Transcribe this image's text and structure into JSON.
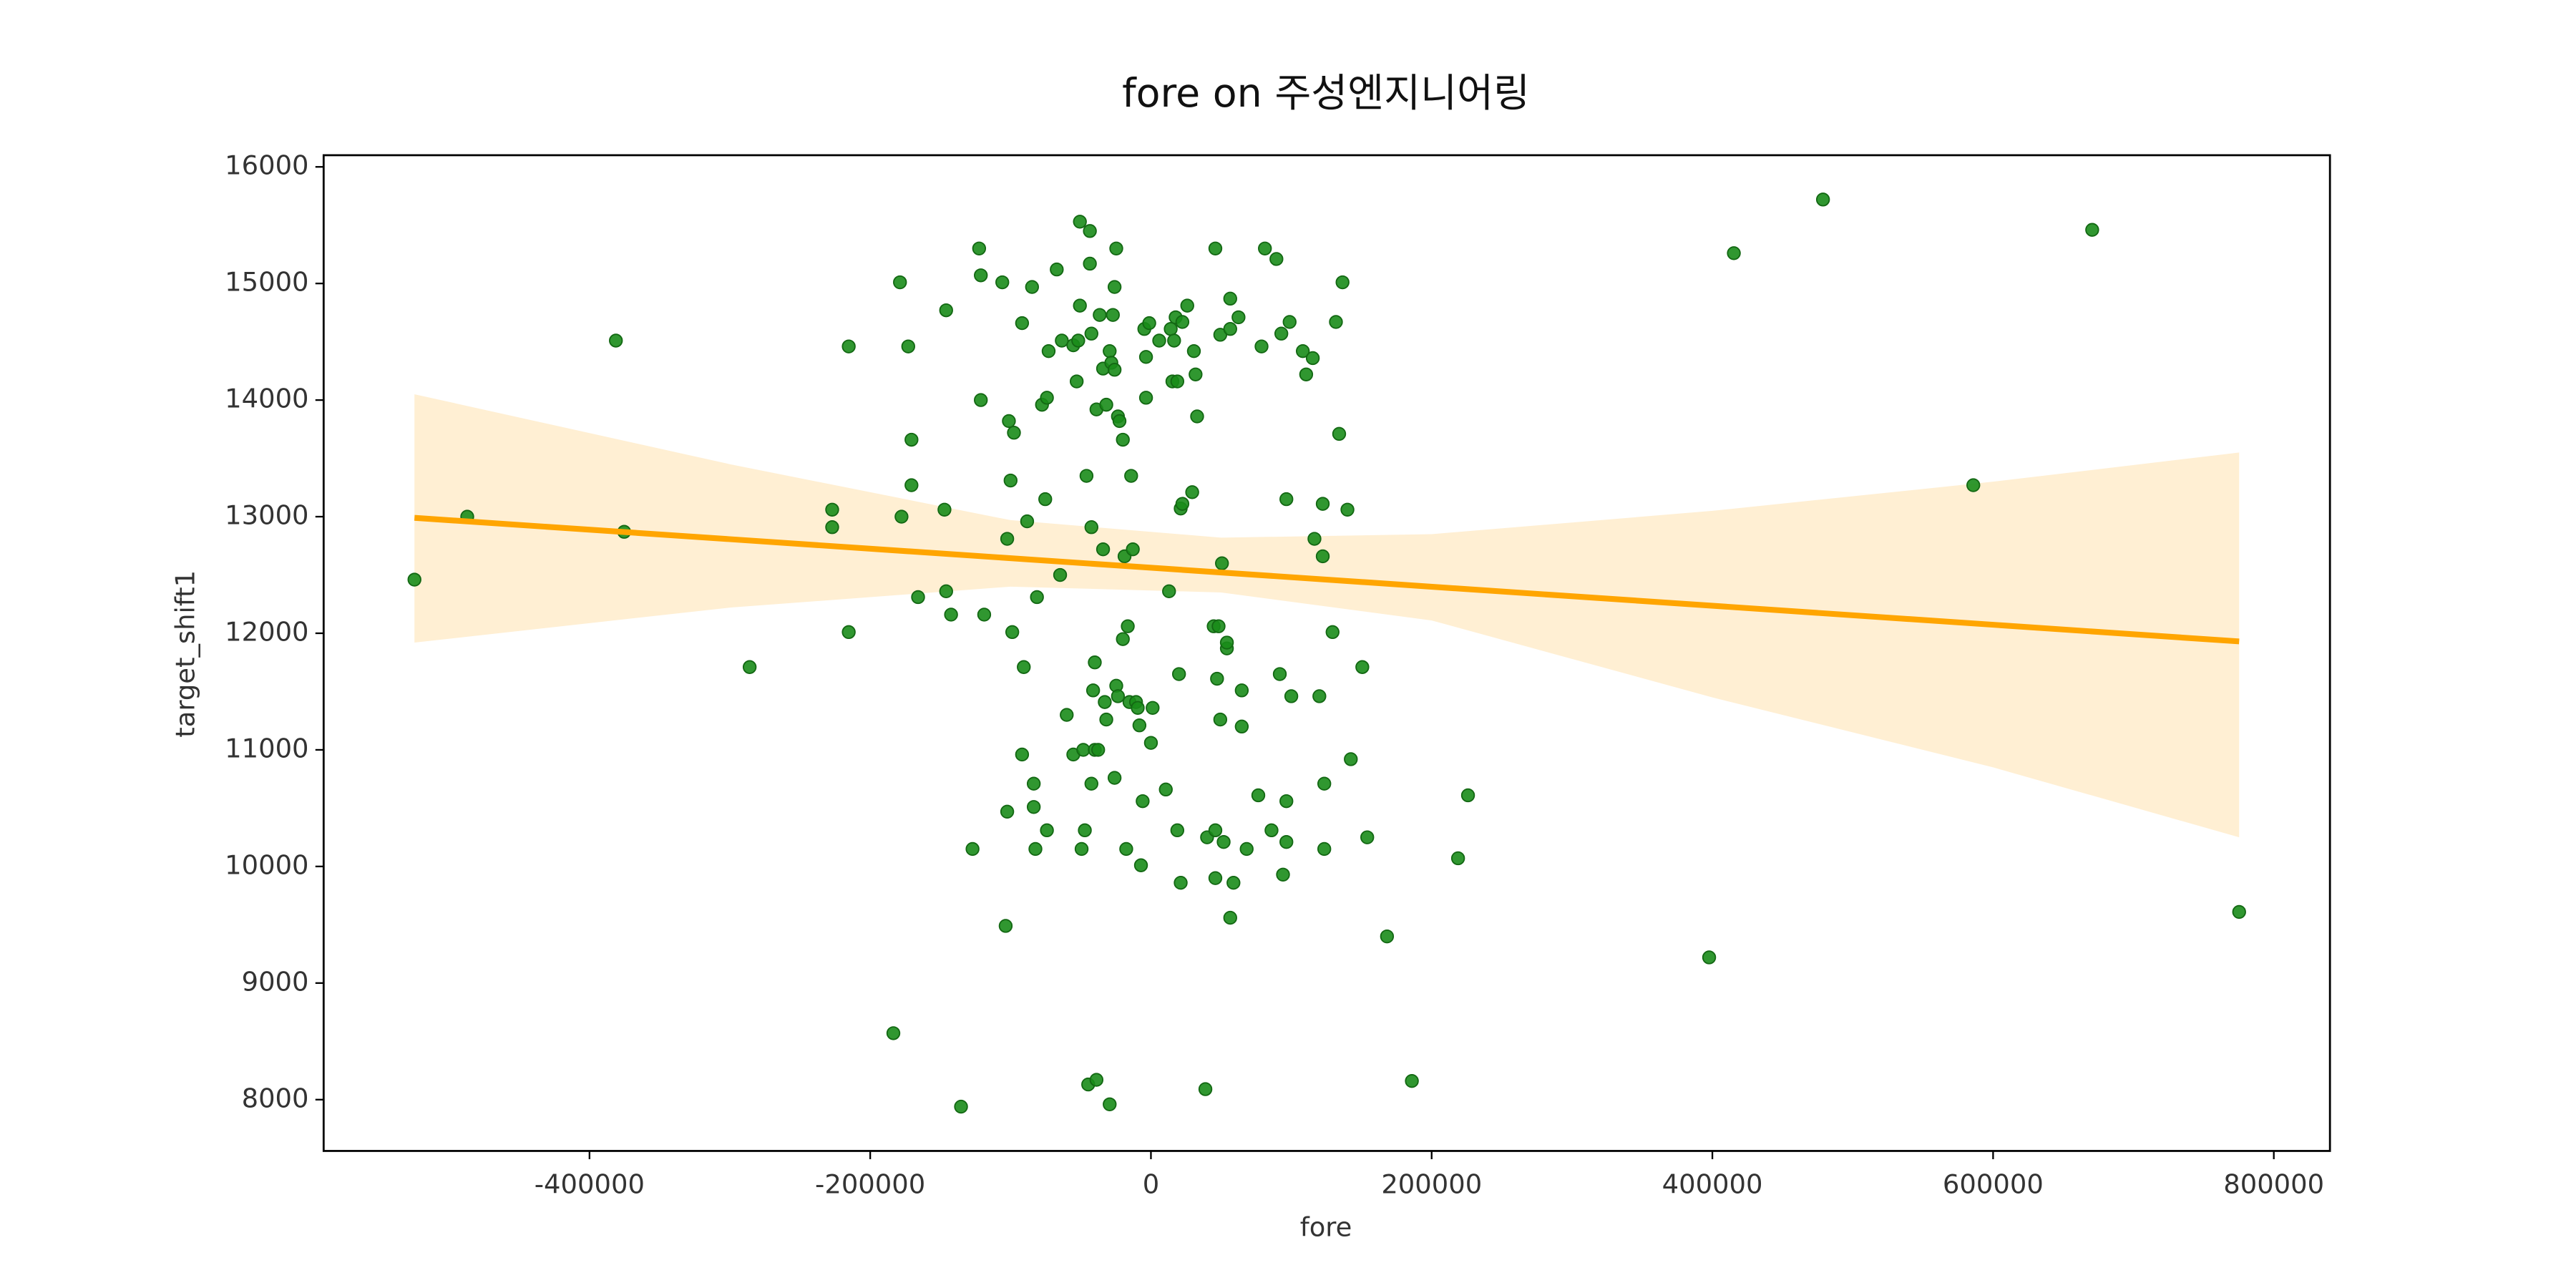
{
  "chart_data": {
    "type": "scatter",
    "title": "fore on 주성엔지니어링",
    "x_label": "fore",
    "y_label": "target_shift1",
    "xlim": [
      -589400,
      840000
    ],
    "ylim": [
      7560,
      16100
    ],
    "xticks": [
      -400000,
      -200000,
      0,
      200000,
      400000,
      600000,
      800000
    ],
    "yticks": [
      8000,
      9000,
      10000,
      11000,
      12000,
      13000,
      14000,
      15000,
      16000
    ],
    "grid": false,
    "series": [
      {
        "color": "#1a8c1a",
        "x": [
          -524700,
          -487100,
          -381200,
          -375300,
          -285900,
          -227100,
          -227100,
          -215300,
          -215300,
          -183500,
          -178800,
          -177700,
          -172900,
          -170600,
          -170600,
          -165900,
          -145900,
          -147100,
          -145900,
          -142400,
          -135300,
          -127100,
          -122400,
          -121200,
          -121200,
          -118800,
          -105900,
          -103500,
          -102400,
          -100000,
          -101200,
          -97600,
          -102400,
          -98800,
          -91800,
          -90600,
          -91800,
          -88200,
          -84700,
          -83500,
          -83500,
          -81200,
          -82300,
          -77600,
          -74100,
          -75300,
          -72900,
          -74100,
          -67100,
          -64700,
          -63500,
          -60000,
          -55300,
          -55300,
          -52900,
          -51800,
          -50600,
          -50600,
          -49400,
          -48200,
          -47100,
          -45900,
          -44700,
          -43500,
          -43500,
          -42400,
          -42400,
          -42400,
          -41200,
          -40000,
          -40000,
          -38800,
          -38800,
          -37600,
          -36500,
          -34100,
          -34100,
          -32900,
          -31800,
          -31800,
          -29400,
          -29400,
          -28200,
          -27100,
          -25900,
          -25900,
          -25900,
          -24700,
          -24700,
          -23500,
          -23500,
          -22400,
          -20000,
          -20000,
          -18800,
          -17600,
          -16500,
          -15300,
          -14100,
          -12900,
          -10600,
          -9400,
          -8200,
          -7100,
          -5900,
          -4700,
          -3500,
          -3500,
          -1200,
          0,
          1200,
          5900,
          10600,
          12900,
          14100,
          15300,
          16500,
          18800,
          17600,
          18800,
          20000,
          21200,
          21200,
          22400,
          22400,
          25900,
          29400,
          30600,
          31800,
          32900,
          38800,
          40000,
          44700,
          45900,
          45900,
          45900,
          47100,
          48200,
          49400,
          49400,
          50600,
          51800,
          54100,
          54100,
          56500,
          56500,
          56500,
          58800,
          62400,
          64700,
          64700,
          68200,
          76500,
          78800,
          81200,
          85900,
          89400,
          91800,
          92900,
          94100,
          96500,
          96500,
          96500,
          98800,
          100000,
          108200,
          110600,
          115300,
          116500,
          120000,
          122400,
          122400,
          123500,
          123500,
          129400,
          131800,
          134100,
          136500,
          140000,
          142400,
          150600,
          154100,
          168200,
          185900,
          218800,
          225900,
          397700,
          415300,
          478800,
          585900,
          670600,
          775300
        ],
        "y": [
          12460,
          13000,
          14510,
          12870,
          11710,
          13060,
          12910,
          14460,
          12010,
          8570,
          15010,
          13000,
          14460,
          13660,
          13270,
          12310,
          14770,
          13060,
          12360,
          12160,
          7940,
          10150,
          15300,
          15070,
          14000,
          12160,
          15010,
          9490,
          10470,
          13310,
          13820,
          13720,
          12810,
          12010,
          14660,
          11710,
          10960,
          12960,
          14970,
          10710,
          10510,
          12310,
          10150,
          13960,
          14020,
          13150,
          14420,
          10310,
          15120,
          12500,
          14510,
          11300,
          14470,
          10960,
          14160,
          14510,
          15530,
          14810,
          10150,
          11000,
          10310,
          13350,
          8130,
          15450,
          15170,
          14570,
          10710,
          12910,
          11510,
          11000,
          11750,
          13920,
          8170,
          11000,
          14730,
          12720,
          14270,
          11410,
          11260,
          13960,
          14420,
          7960,
          14320,
          14730,
          14260,
          14970,
          10760,
          15300,
          11550,
          13860,
          11460,
          13820,
          13660,
          11950,
          12660,
          10150,
          12060,
          11410,
          13350,
          12720,
          11410,
          11360,
          11210,
          10010,
          10560,
          14610,
          14370,
          14020,
          14660,
          11060,
          11360,
          14510,
          10660,
          12360,
          14610,
          14160,
          14510,
          14160,
          14710,
          10310,
          11650,
          9860,
          13070,
          13110,
          14670,
          14810,
          13210,
          14420,
          14220,
          13860,
          8090,
          10250,
          12060,
          15300,
          10310,
          9900,
          11610,
          12060,
          14560,
          11260,
          12600,
          10210,
          11870,
          11920,
          14610,
          14870,
          9560,
          9860,
          14710,
          11510,
          11200,
          10150,
          10610,
          14460,
          15300,
          10310,
          15210,
          11650,
          14570,
          9930,
          10560,
          10210,
          13150,
          14670,
          11460,
          14420,
          14220,
          14360,
          12810,
          11460,
          13110,
          12660,
          10710,
          10150,
          12010,
          14670,
          13710,
          15010,
          13060,
          10920,
          11710,
          10250,
          9400,
          8160,
          10070,
          10610,
          9220,
          15260,
          15720,
          13270,
          15460,
          9610
        ]
      }
    ],
    "regression": {
      "color": "#ffa500",
      "x": [
        -524700,
        775300
      ],
      "y": [
        12990,
        11930
      ]
    },
    "ci": {
      "color": "#ffe9c4",
      "x": [
        -524700,
        -300000,
        -100000,
        50000,
        200000,
        400000,
        600000,
        775300
      ],
      "upper": [
        14050,
        13450,
        12970,
        12820,
        12850,
        13050,
        13300,
        13550
      ],
      "lower": [
        11920,
        12220,
        12400,
        12350,
        12110,
        11450,
        10850,
        10250
      ]
    }
  }
}
